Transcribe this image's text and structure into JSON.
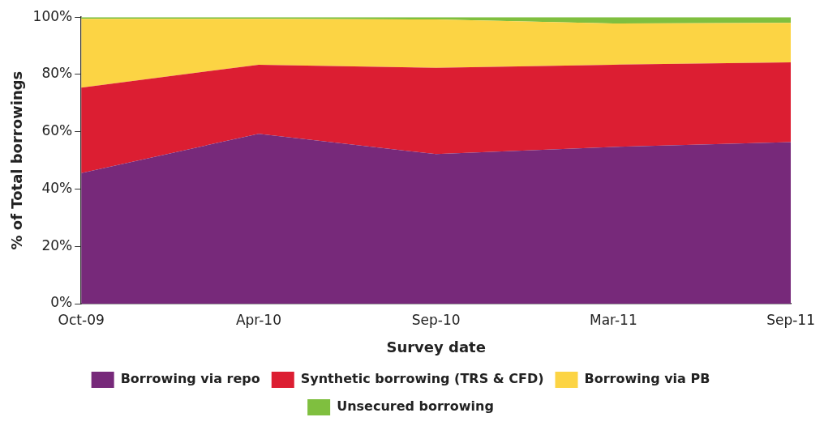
{
  "chart_data": {
    "type": "area",
    "stacked": true,
    "xlabel": "Survey date",
    "ylabel": "% of Total borrowings",
    "categories": [
      "Oct-09",
      "Apr-10",
      "Sep-10",
      "Mar-11",
      "Sep-11"
    ],
    "ylim": [
      0,
      100
    ],
    "yticks": [
      {
        "value": 0,
        "label": "0%"
      },
      {
        "value": 20,
        "label": "20%"
      },
      {
        "value": 40,
        "label": "40%"
      },
      {
        "value": 60,
        "label": "60%"
      },
      {
        "value": 80,
        "label": "80%"
      },
      {
        "value": 100,
        "label": "100%"
      }
    ],
    "series": [
      {
        "name": "Borrowing via repo",
        "color": "#77297a",
        "values": [
          45.6,
          59.3,
          52.2,
          54.7,
          56.4
        ]
      },
      {
        "name": "Synthetic borrowing (TRS & CFD)",
        "color": "#dc1e32",
        "values": [
          29.8,
          24.1,
          30.1,
          28.7,
          27.8
        ]
      },
      {
        "name": "Borrowing via PB",
        "color": "#fcd444",
        "values": [
          24.0,
          16.0,
          16.9,
          14.4,
          13.8
        ]
      },
      {
        "name": "Unsecured borrowing",
        "color": "#7fbf3f",
        "values": [
          0.6,
          0.6,
          0.8,
          2.2,
          2.0
        ]
      }
    ],
    "grid": false,
    "legend": "bottom"
  }
}
